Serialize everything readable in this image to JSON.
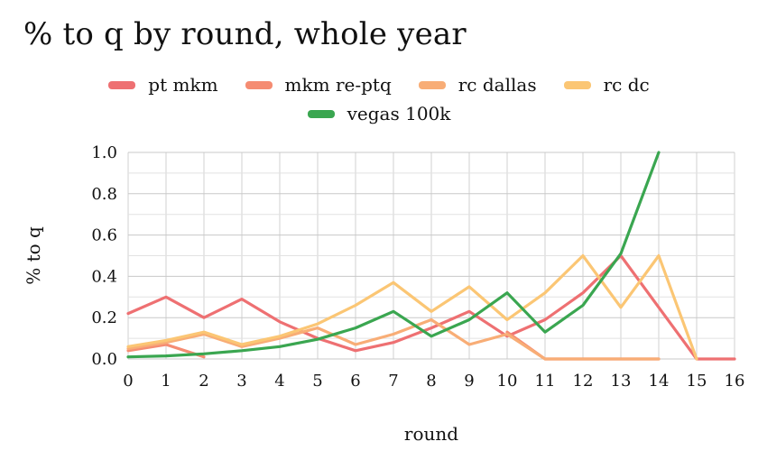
{
  "chart_data": {
    "type": "line",
    "title": "% to q by round, whole year",
    "xlabel": "round",
    "ylabel": "% to q",
    "x": [
      0,
      1,
      2,
      3,
      4,
      5,
      6,
      7,
      8,
      9,
      10,
      11,
      12,
      13,
      14,
      15,
      16
    ],
    "xlim": [
      0,
      16
    ],
    "ylim": [
      0,
      1
    ],
    "yticks": [
      "0.0",
      "0.2",
      "0.4",
      "0.6",
      "0.8",
      "1.0"
    ],
    "grid": true,
    "legend_position": "top",
    "series": [
      {
        "name": "pt mkm",
        "color": "#ee7072",
        "values": [
          0.22,
          0.3,
          0.2,
          0.29,
          0.18,
          0.1,
          0.04,
          0.08,
          0.15,
          0.23,
          0.11,
          0.19,
          0.32,
          0.5,
          0.25,
          0.0,
          0.0
        ]
      },
      {
        "name": "mkm re-ptq",
        "color": "#f58c72",
        "values": [
          0.04,
          0.07,
          0.01,
          null,
          null,
          null,
          null,
          null,
          null,
          null,
          0.13,
          0.0,
          0.0,
          0.0,
          0.0,
          null,
          null
        ]
      },
      {
        "name": "rc dallas",
        "color": "#f8ad76",
        "values": [
          0.05,
          0.08,
          0.12,
          0.06,
          0.1,
          0.15,
          0.07,
          0.12,
          0.19,
          0.07,
          0.12,
          0.0,
          0.0,
          0.0,
          0.0,
          null,
          null
        ]
      },
      {
        "name": "rc dc",
        "color": "#fbc674",
        "values": [
          0.06,
          0.09,
          0.13,
          0.07,
          0.11,
          0.17,
          0.26,
          0.37,
          0.23,
          0.35,
          0.19,
          0.32,
          0.5,
          0.25,
          0.5,
          0.0,
          null
        ]
      },
      {
        "name": "vegas 100k",
        "color": "#3aa650",
        "values": [
          0.01,
          0.015,
          0.025,
          0.04,
          0.06,
          0.095,
          0.15,
          0.23,
          0.11,
          0.19,
          0.32,
          0.13,
          0.26,
          0.51,
          1.0,
          null,
          null
        ]
      }
    ]
  }
}
